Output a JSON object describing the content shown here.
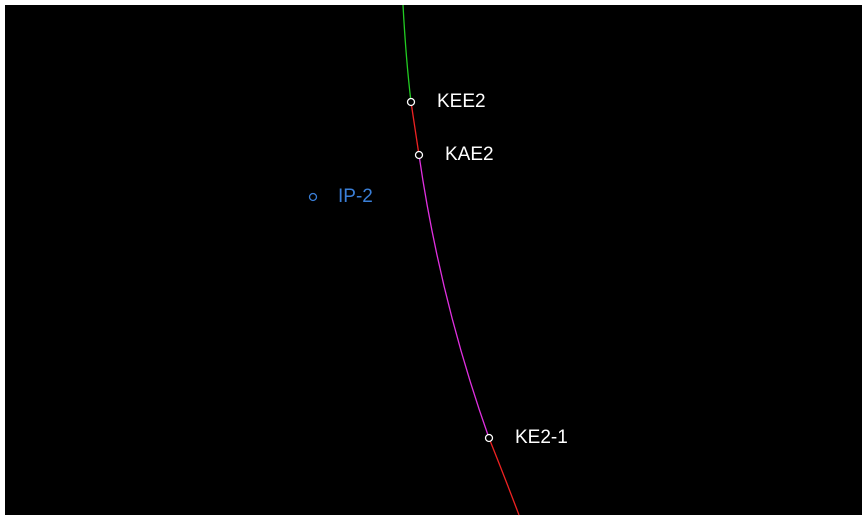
{
  "nodes": [
    {
      "label": "KEE2"
    },
    {
      "label": "KAE2"
    },
    {
      "label": "IP-2"
    },
    {
      "label": "KE2-1"
    }
  ]
}
